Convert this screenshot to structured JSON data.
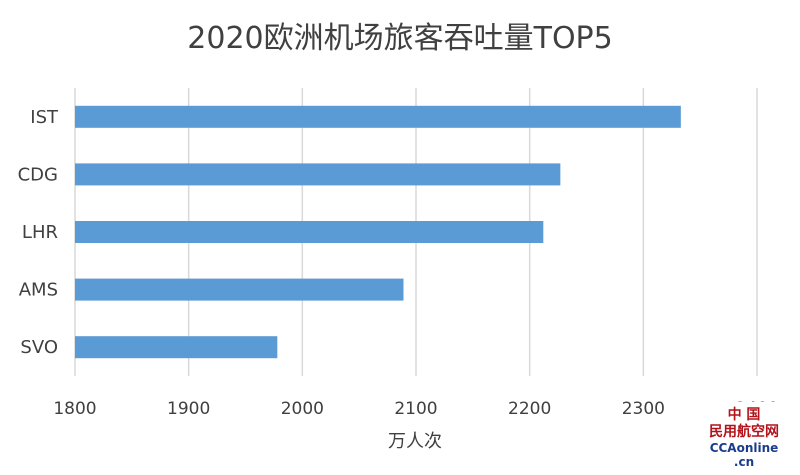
{
  "chart_data": {
    "type": "bar",
    "orientation": "horizontal",
    "title": "2020欧洲机场旅客吞吐量TOP5",
    "xlabel": "万人次",
    "ylabel": "",
    "categories": [
      "IST",
      "CDG",
      "LHR",
      "AMS",
      "SVO"
    ],
    "values": [
      2333,
      2227,
      2212,
      2089,
      1978
    ],
    "xlim": [
      1800,
      2400
    ],
    "xticks": [
      1800,
      1900,
      2000,
      2100,
      2200,
      2300,
      2400
    ],
    "grid": "vertical",
    "colors": {
      "bar": "#5b9bd5",
      "grid": "#d9d9d9",
      "text": "#404040"
    }
  },
  "watermark": {
    "line1": "中 国",
    "line2": "民用航空网",
    "line3": "CCAonline",
    "line4": ".cn",
    "colors": {
      "red": "#b3121b",
      "blue": "#1a3c8c"
    }
  }
}
